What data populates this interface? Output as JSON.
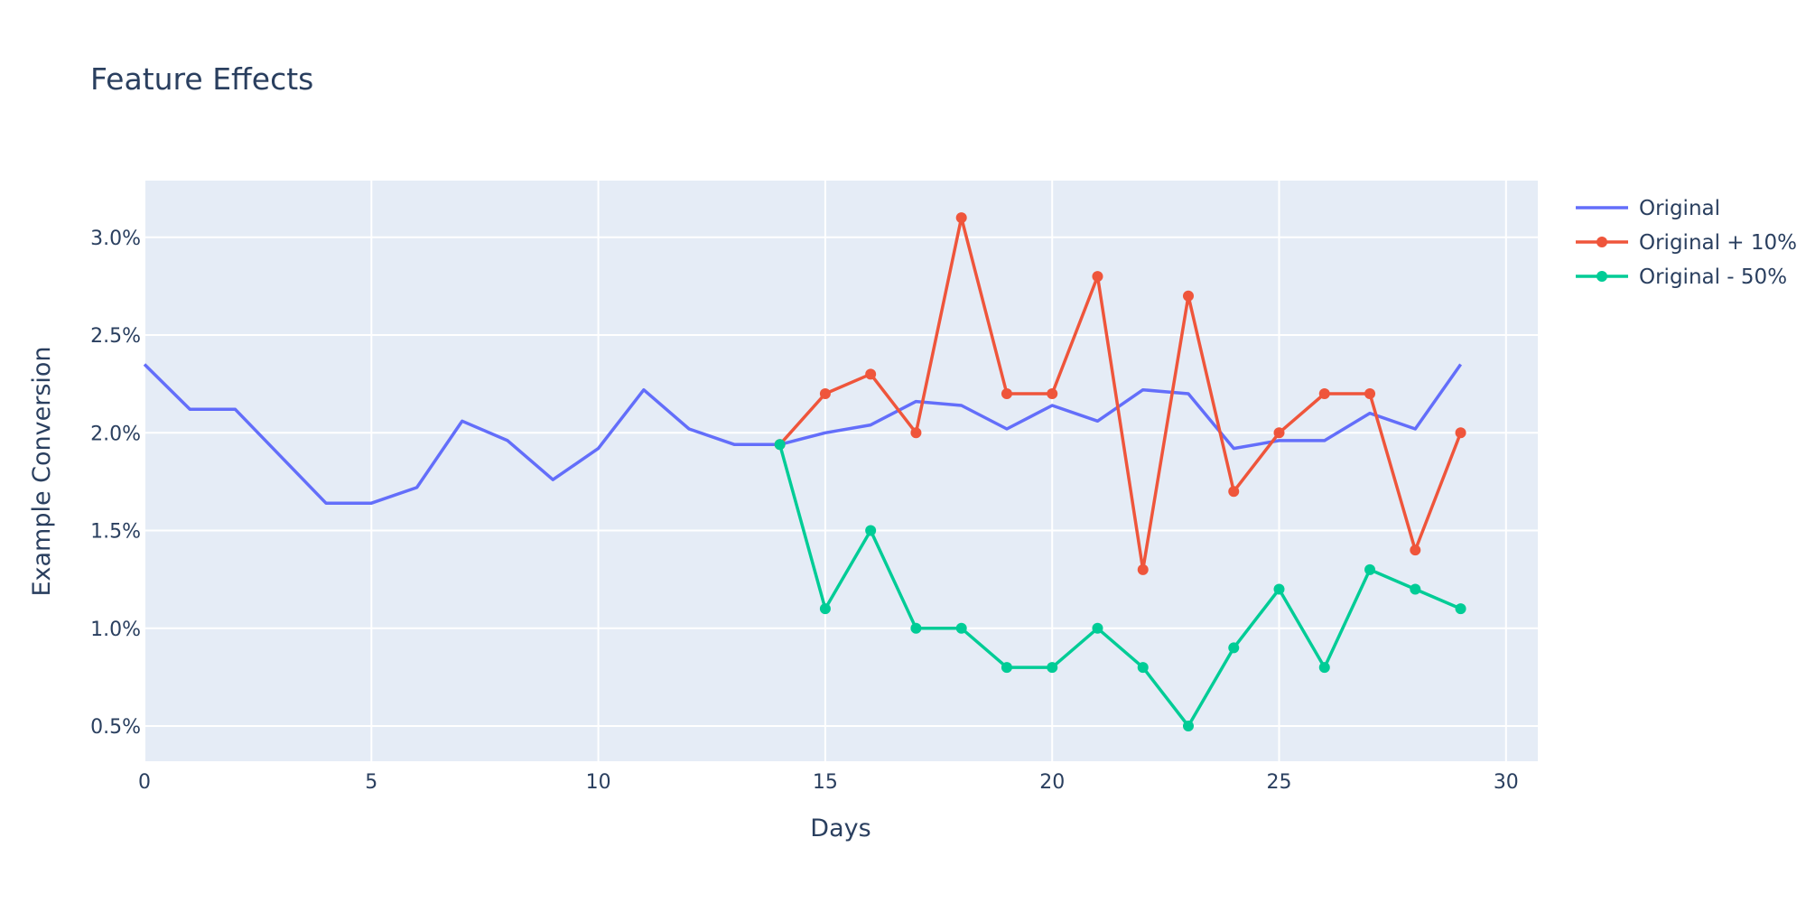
{
  "chart_data": {
    "type": "line",
    "title": "Feature Effects",
    "xlabel": "Days",
    "ylabel": "Example Conversion",
    "xlim": [
      0,
      30.7
    ],
    "ylim": [
      0.0032,
      0.0329
    ],
    "x_ticks": [
      0,
      5,
      10,
      15,
      20,
      25,
      30
    ],
    "x_tick_labels": [
      "0",
      "5",
      "10",
      "15",
      "20",
      "25",
      "30"
    ],
    "y_ticks": [
      0.005,
      0.01,
      0.015,
      0.02,
      0.025,
      0.03
    ],
    "y_tick_labels": [
      "0.5%",
      "1.0%",
      "1.5%",
      "2.0%",
      "2.5%",
      "3.0%"
    ],
    "grid": true,
    "legend_position": "top-right",
    "plot_background": "#e5ecf6",
    "series": [
      {
        "name": "Original",
        "color": "#636efa",
        "markers": false,
        "x": [
          0,
          1,
          2,
          3,
          4,
          5,
          6,
          7,
          8,
          9,
          10,
          11,
          12,
          13,
          14,
          15,
          16,
          17,
          18,
          19,
          20,
          21,
          22,
          23,
          24,
          25,
          26,
          27,
          28,
          29
        ],
        "y": [
          0.0235,
          0.0212,
          0.0212,
          0.0188,
          0.0164,
          0.0164,
          0.0172,
          0.0206,
          0.0196,
          0.0176,
          0.0192,
          0.0222,
          0.0202,
          0.0194,
          0.0194,
          0.02,
          0.0204,
          0.0216,
          0.0214,
          0.0202,
          0.0214,
          0.0206,
          0.0222,
          0.022,
          0.0192,
          0.0196,
          0.0196,
          0.021,
          0.0202,
          0.0235
        ]
      },
      {
        "name": "Original + 10%",
        "color": "#ef553b",
        "markers": true,
        "x": [
          14,
          15,
          16,
          17,
          18,
          19,
          20,
          21,
          22,
          23,
          24,
          25,
          26,
          27,
          28,
          29
        ],
        "y": [
          0.0194,
          0.022,
          0.023,
          0.02,
          0.031,
          0.022,
          0.022,
          0.028,
          0.013,
          0.027,
          0.017,
          0.02,
          0.022,
          0.022,
          0.014,
          0.02
        ]
      },
      {
        "name": "Original - 50%",
        "color": "#00cc96",
        "markers": true,
        "x": [
          14,
          15,
          16,
          17,
          18,
          19,
          20,
          21,
          22,
          23,
          24,
          25,
          26,
          27,
          28,
          29
        ],
        "y": [
          0.0194,
          0.011,
          0.015,
          0.01,
          0.01,
          0.008,
          0.008,
          0.01,
          0.008,
          0.005,
          0.009,
          0.012,
          0.008,
          0.013,
          0.012,
          0.011
        ]
      }
    ]
  }
}
